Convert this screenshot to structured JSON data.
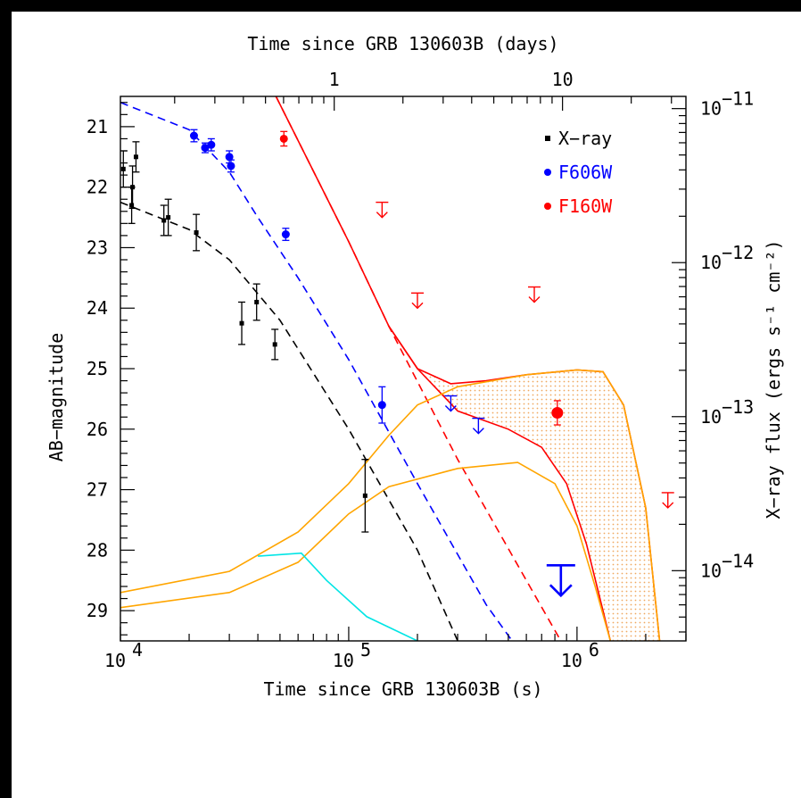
{
  "chart_data": {
    "type": "scatter",
    "title": "",
    "xlabel_bottom": "Time since GRB 130603B (s)",
    "xlabel_top": "Time since GRB 130603B (days)",
    "ylabel_left": "AB−magnitude",
    "ylabel_right": "X−ray flux (ergs s⁻¹ cm⁻²)",
    "x_scale": "log",
    "xlim": [
      10000,
      3000000
    ],
    "ylim_left": [
      29.5,
      20.5
    ],
    "ylim_right_log": [
      3.5e-15,
      1.2e-11
    ],
    "grid": false,
    "legend_placement": "top-right",
    "colors": {
      "xray": "#000000",
      "f606w": "#0000ff",
      "f160w": "#ff0000",
      "kilonova": "#ffa500",
      "cyan_model": "#00e5e5",
      "shade": "#f4c99a"
    },
    "legend": [
      {
        "label": "X−ray",
        "color": "#000000"
      },
      {
        "label": "F606W",
        "color": "#0000ff"
      },
      {
        "label": "F160W",
        "color": "#ff0000"
      }
    ],
    "bottom_ticks": [
      {
        "value": 10000,
        "base": "10",
        "exp": "4"
      },
      {
        "value": 100000,
        "base": "10",
        "exp": "5"
      },
      {
        "value": 1000000,
        "base": "10",
        "exp": "6"
      }
    ],
    "top_ticks": [
      {
        "value": 86400,
        "label": "1"
      },
      {
        "value": 864000,
        "label": "10"
      }
    ],
    "left_ticks": [
      21,
      22,
      23,
      24,
      25,
      26,
      27,
      28,
      29
    ],
    "right_ticks": [
      {
        "value": 1e-11,
        "base": "10",
        "exp": "−11"
      },
      {
        "value": 1e-12,
        "base": "10",
        "exp": "−12"
      },
      {
        "value": 1e-13,
        "base": "10",
        "exp": "−13"
      },
      {
        "value": 1e-14,
        "base": "10",
        "exp": "−14"
      }
    ],
    "series": [
      {
        "name": "X−ray",
        "kind": "points",
        "marker": "square",
        "color": "#000000",
        "points": [
          {
            "t": 10300,
            "mag": 21.7,
            "err": 0.3
          },
          {
            "t": 11200,
            "mag": 22.3,
            "err": 0.3
          },
          {
            "t": 11300,
            "mag": 22.0,
            "err": 0.35
          },
          {
            "t": 11700,
            "mag": 21.5,
            "err": 0.25
          },
          {
            "t": 15500,
            "mag": 22.55,
            "err": 0.25
          },
          {
            "t": 16200,
            "mag": 22.5,
            "err": 0.3
          },
          {
            "t": 21500,
            "mag": 22.75,
            "err": 0.3
          },
          {
            "t": 34000,
            "mag": 24.25,
            "err": 0.35
          },
          {
            "t": 39500,
            "mag": 23.9,
            "err": 0.3
          },
          {
            "t": 47500,
            "mag": 24.6,
            "err": 0.25
          },
          {
            "t": 118000,
            "mag": 27.1,
            "err": 0.6
          }
        ]
      },
      {
        "name": "F606W",
        "kind": "points",
        "marker": "circle",
        "color": "#0000ff",
        "points": [
          {
            "t": 21000,
            "mag": 21.15,
            "err": 0.1
          },
          {
            "t": 23500,
            "mag": 21.35,
            "err": 0.08
          },
          {
            "t": 25000,
            "mag": 21.3,
            "err": 0.1
          },
          {
            "t": 30000,
            "mag": 21.5,
            "err": 0.1
          },
          {
            "t": 30500,
            "mag": 21.65,
            "err": 0.1
          },
          {
            "t": 53000,
            "mag": 22.78,
            "err": 0.1
          },
          {
            "t": 140000,
            "mag": 25.6,
            "err": 0.3
          }
        ]
      },
      {
        "name": "F160W",
        "kind": "points",
        "marker": "circle",
        "color": "#ff0000",
        "points": [
          {
            "t": 52000,
            "mag": 21.2,
            "err": 0.12
          },
          {
            "t": 820000,
            "mag": 25.73,
            "err": 0.2
          }
        ]
      },
      {
        "name": "F606W upper limits",
        "kind": "upper_limits",
        "color": "#0000ff",
        "points": [
          {
            "t": 280000,
            "mag": 25.45
          },
          {
            "t": 370000,
            "mag": 25.82
          },
          {
            "t": 850000,
            "mag": 28.25,
            "size": "large"
          }
        ]
      },
      {
        "name": "F160W upper limits",
        "kind": "upper_limits",
        "color": "#ff0000",
        "points": [
          {
            "t": 140000,
            "mag": 22.25
          },
          {
            "t": 200000,
            "mag": 23.75
          },
          {
            "t": 650000,
            "mag": 23.65
          },
          {
            "t": 2500000,
            "mag": 27.05
          }
        ]
      }
    ],
    "models": [
      {
        "kind": "line",
        "style": "dashed",
        "color": "#000000",
        "points": [
          [
            10000,
            22.25
          ],
          [
            20000,
            22.7
          ],
          [
            30000,
            23.2
          ],
          [
            50000,
            24.2
          ],
          [
            100000,
            26.0
          ],
          [
            200000,
            28.0
          ],
          [
            300000,
            29.5
          ]
        ]
      },
      {
        "kind": "line",
        "style": "dashed",
        "color": "#0000ff",
        "points": [
          [
            10000,
            20.6
          ],
          [
            20000,
            21.05
          ],
          [
            30000,
            21.75
          ],
          [
            40000,
            22.5
          ],
          [
            60000,
            23.5
          ],
          [
            100000,
            24.85
          ],
          [
            200000,
            26.9
          ],
          [
            400000,
            28.9
          ],
          [
            520000,
            29.5
          ]
        ]
      },
      {
        "kind": "line",
        "style": "dashed",
        "color": "#ff0000",
        "points": [
          [
            48000,
            20.5
          ],
          [
            100000,
            22.9
          ],
          [
            150000,
            24.3
          ],
          [
            300000,
            26.5
          ],
          [
            600000,
            28.5
          ],
          [
            850000,
            29.5
          ]
        ]
      },
      {
        "kind": "line",
        "style": "solid",
        "color": "#ff0000",
        "points": [
          [
            48000,
            20.5
          ],
          [
            100000,
            22.9
          ],
          [
            150000,
            24.3
          ],
          [
            200000,
            25.0
          ],
          [
            280000,
            25.25
          ],
          [
            400000,
            25.2
          ],
          [
            600000,
            25.1
          ],
          [
            1000000,
            25.02
          ],
          [
            1300000,
            25.05
          ],
          [
            1600000,
            25.6
          ],
          [
            2000000,
            27.3
          ],
          [
            2300000,
            29.5
          ]
        ]
      },
      {
        "kind": "line",
        "style": "solid",
        "color": "#ff0000",
        "points": [
          [
            150000,
            24.3
          ],
          [
            200000,
            25.0
          ],
          [
            300000,
            25.7
          ],
          [
            500000,
            26.0
          ],
          [
            700000,
            26.3
          ],
          [
            900000,
            26.9
          ],
          [
            1100000,
            27.9
          ],
          [
            1300000,
            29.0
          ],
          [
            1400000,
            29.5
          ]
        ]
      },
      {
        "kind": "line",
        "style": "solid",
        "color": "#ffa500",
        "points": [
          [
            10000,
            28.7
          ],
          [
            30000,
            28.35
          ],
          [
            60000,
            27.7
          ],
          [
            100000,
            26.9
          ],
          [
            150000,
            26.1
          ],
          [
            200000,
            25.6
          ],
          [
            300000,
            25.3
          ],
          [
            600000,
            25.1
          ],
          [
            1000000,
            25.02
          ],
          [
            1300000,
            25.05
          ],
          [
            1600000,
            25.6
          ],
          [
            2000000,
            27.3
          ],
          [
            2300000,
            29.5
          ]
        ]
      },
      {
        "kind": "line",
        "style": "solid",
        "color": "#ffa500",
        "points": [
          [
            10000,
            28.95
          ],
          [
            30000,
            28.7
          ],
          [
            60000,
            28.2
          ],
          [
            100000,
            27.4
          ],
          [
            150000,
            26.95
          ],
          [
            300000,
            26.65
          ],
          [
            550000,
            26.55
          ],
          [
            800000,
            26.9
          ],
          [
            1000000,
            27.6
          ],
          [
            1200000,
            28.6
          ],
          [
            1400000,
            29.5
          ]
        ]
      },
      {
        "kind": "line",
        "style": "solid",
        "color": "#00e5e5",
        "points": [
          [
            40000,
            28.1
          ],
          [
            62000,
            28.05
          ],
          [
            80000,
            28.5
          ],
          [
            120000,
            29.1
          ],
          [
            200000,
            29.5
          ]
        ]
      }
    ],
    "shaded_region": {
      "color": "#f4c99a",
      "upper": [
        [
          150000,
          24.3
        ],
        [
          200000,
          25.0
        ],
        [
          280000,
          25.25
        ],
        [
          400000,
          25.2
        ],
        [
          600000,
          25.1
        ],
        [
          1000000,
          25.02
        ],
        [
          1300000,
          25.05
        ],
        [
          1600000,
          25.6
        ],
        [
          2000000,
          27.3
        ],
        [
          2300000,
          29.5
        ]
      ],
      "lower": [
        [
          150000,
          24.3
        ],
        [
          200000,
          25.0
        ],
        [
          300000,
          25.7
        ],
        [
          500000,
          26.0
        ],
        [
          700000,
          26.3
        ],
        [
          900000,
          26.9
        ],
        [
          1100000,
          27.9
        ],
        [
          1300000,
          29.0
        ],
        [
          1400000,
          29.5
        ]
      ]
    }
  }
}
